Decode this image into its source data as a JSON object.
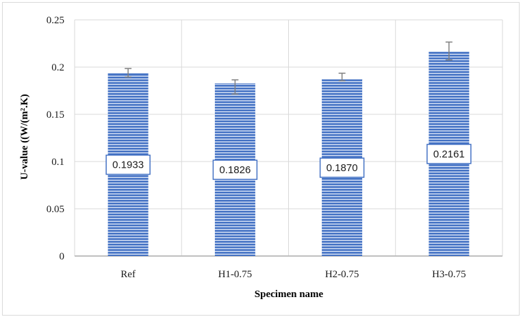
{
  "chart_data": {
    "type": "bar",
    "title": "",
    "xlabel": "Specimen name",
    "ylabel": "U-value ((W/(m².K)",
    "categories": [
      "Ref",
      "H1-0.75",
      "H2-0.75",
      "H3-0.75"
    ],
    "values": [
      0.1933,
      0.1826,
      0.187,
      0.2161
    ],
    "data_labels": [
      "0.1933",
      "0.1826",
      "0.1870",
      "0.2161"
    ],
    "error_low": [
      0.1895,
      0.1715,
      0.1855,
      0.2075
    ],
    "error_high": [
      0.1985,
      0.1865,
      0.1935,
      0.2265
    ],
    "ylim": [
      0,
      0.25
    ],
    "yticks": [
      0,
      0.05,
      0.1,
      0.15,
      0.2,
      0.25
    ],
    "ytick_labels": [
      "0",
      "0.05",
      "0.1",
      "0.15",
      "0.2",
      "0.25"
    ],
    "grid": true,
    "legend": "none",
    "colors": {
      "bar_fill": "#4472c4",
      "bar_stripe": "#ffffff",
      "label_border": "#4472c4",
      "error_bar": "#7f7f7f",
      "grid": "#d9d9d9",
      "axis": "#bfbfbf"
    }
  }
}
